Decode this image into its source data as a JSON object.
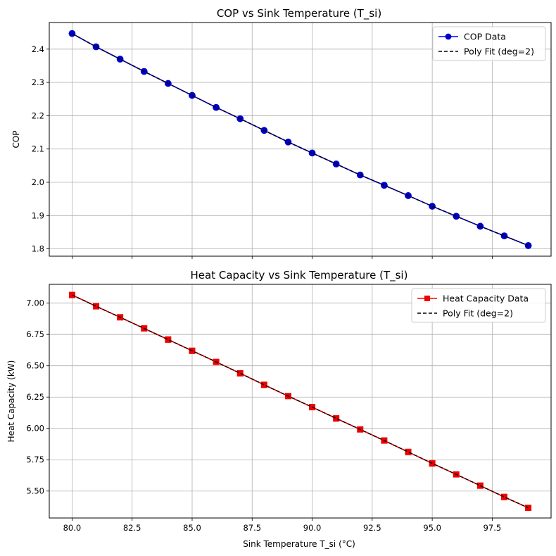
{
  "chart_data": [
    {
      "type": "line",
      "title": "COP vs Sink Temperature (T_si)",
      "xlabel": "",
      "ylabel": "COP",
      "x": [
        80,
        81,
        82,
        83,
        84,
        85,
        86,
        87,
        88,
        89,
        90,
        91,
        92,
        93,
        94,
        95,
        96,
        97,
        98,
        99
      ],
      "xlim": [
        79.05,
        99.95
      ],
      "ylim": [
        1.778,
        2.48
      ],
      "xticks": [
        80.0,
        82.5,
        85.0,
        87.5,
        90.0,
        92.5,
        95.0,
        97.5
      ],
      "xticklabels_visible": false,
      "yticks": [
        1.8,
        1.9,
        2.0,
        2.1,
        2.2,
        2.3,
        2.4
      ],
      "yticklabels": [
        "1.8",
        "1.9",
        "2.0",
        "2.1",
        "2.2",
        "2.3",
        "2.4"
      ],
      "grid": true,
      "legend_position": "top-right",
      "series": [
        {
          "name": "COP Data",
          "style": "solid-line-circle-markers",
          "color": "#0000ff",
          "marker_color": "#0000cc",
          "values": [
            2.447,
            2.407,
            2.37,
            2.333,
            2.297,
            2.261,
            2.225,
            2.191,
            2.156,
            2.121,
            2.088,
            2.055,
            2.022,
            1.991,
            1.96,
            1.928,
            1.898,
            1.868,
            1.839,
            1.81
          ]
        },
        {
          "name": "Poly Fit (deg=2)",
          "style": "dashed-line",
          "color": "#000000",
          "values": [
            2.447,
            2.407,
            2.37,
            2.333,
            2.297,
            2.261,
            2.225,
            2.191,
            2.156,
            2.121,
            2.088,
            2.055,
            2.022,
            1.991,
            1.96,
            1.928,
            1.898,
            1.868,
            1.839,
            1.81
          ]
        }
      ]
    },
    {
      "type": "line",
      "title": "Heat Capacity vs Sink Temperature (T_si)",
      "xlabel": "Sink Temperature T_si (°C)",
      "ylabel": "Heat Capacity (kW)",
      "x": [
        80,
        81,
        82,
        83,
        84,
        85,
        86,
        87,
        88,
        89,
        90,
        91,
        92,
        93,
        94,
        95,
        96,
        97,
        98,
        99
      ],
      "xlim": [
        79.05,
        99.95
      ],
      "ylim": [
        5.285,
        7.15
      ],
      "xticks": [
        80.0,
        82.5,
        85.0,
        87.5,
        90.0,
        92.5,
        95.0,
        97.5
      ],
      "xticklabels": [
        "80.0",
        "82.5",
        "85.0",
        "87.5",
        "90.0",
        "92.5",
        "95.0",
        "97.5"
      ],
      "yticks": [
        5.5,
        5.75,
        6.0,
        6.25,
        6.5,
        6.75,
        7.0
      ],
      "yticklabels": [
        "5.50",
        "5.75",
        "6.00",
        "6.25",
        "6.50",
        "6.75",
        "7.00"
      ],
      "grid": true,
      "legend_position": "top-right",
      "series": [
        {
          "name": "Heat Capacity Data",
          "style": "solid-line-square-markers",
          "color": "#ff0000",
          "marker_color": "#ee0000",
          "values": [
            7.065,
            6.975,
            6.887,
            6.798,
            6.709,
            6.62,
            6.531,
            6.44,
            6.348,
            6.258,
            6.17,
            6.08,
            5.992,
            5.903,
            5.812,
            5.721,
            5.633,
            5.543,
            5.453,
            5.366
          ]
        },
        {
          "name": "Poly Fit (deg=2)",
          "style": "dashed-line",
          "color": "#000000",
          "values": [
            7.065,
            6.975,
            6.887,
            6.798,
            6.709,
            6.62,
            6.531,
            6.44,
            6.348,
            6.258,
            6.17,
            6.08,
            5.992,
            5.903,
            5.812,
            5.721,
            5.633,
            5.543,
            5.453,
            5.366
          ]
        }
      ]
    }
  ]
}
